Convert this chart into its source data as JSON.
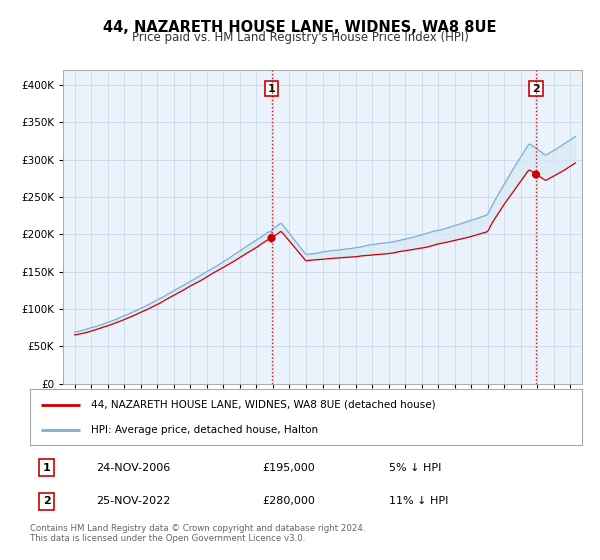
{
  "title": "44, NAZARETH HOUSE LANE, WIDNES, WA8 8UE",
  "subtitle": "Price paid vs. HM Land Registry's House Price Index (HPI)",
  "legend_line1": "44, NAZARETH HOUSE LANE, WIDNES, WA8 8UE (detached house)",
  "legend_line2": "HPI: Average price, detached house, Halton",
  "sale1_label": "1",
  "sale1_date": "24-NOV-2006",
  "sale1_price": "£195,000",
  "sale1_hpi": "5% ↓ HPI",
  "sale2_label": "2",
  "sale2_date": "25-NOV-2022",
  "sale2_price": "£280,000",
  "sale2_hpi": "11% ↓ HPI",
  "footer1": "Contains HM Land Registry data © Crown copyright and database right 2024.",
  "footer2": "This data is licensed under the Open Government Licence v3.0.",
  "red_color": "#cc0000",
  "blue_color": "#7ab0d4",
  "fill_color": "#d8e8f4",
  "background_color": "#ffffff",
  "grid_color": "#c8d8e8",
  "chart_bg": "#eaf3fb",
  "sale1_year": 2006.917,
  "sale2_year": 2022.917,
  "sale1_price_val": 195000,
  "sale2_price_val": 280000,
  "ylim_max": 420000,
  "ylim_min": 0,
  "xmin": 1994.3,
  "xmax": 2025.7
}
